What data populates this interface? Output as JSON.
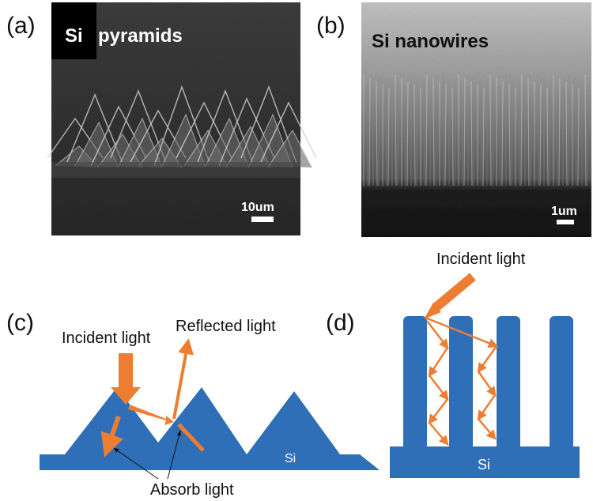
{
  "panels": [
    {
      "label": "(a)",
      "title_box": "Si",
      "title": "pyramids",
      "scale": "10um"
    },
    {
      "label": "(b)",
      "title": "Si nanowires",
      "scale": "1um"
    },
    {
      "label": "(c)",
      "incident": "Incident light",
      "reflected": "Reflected light",
      "absorb": "Absorb light",
      "material": "Si"
    },
    {
      "label": "(d)",
      "incident": "Incident light",
      "material": "Si"
    }
  ]
}
